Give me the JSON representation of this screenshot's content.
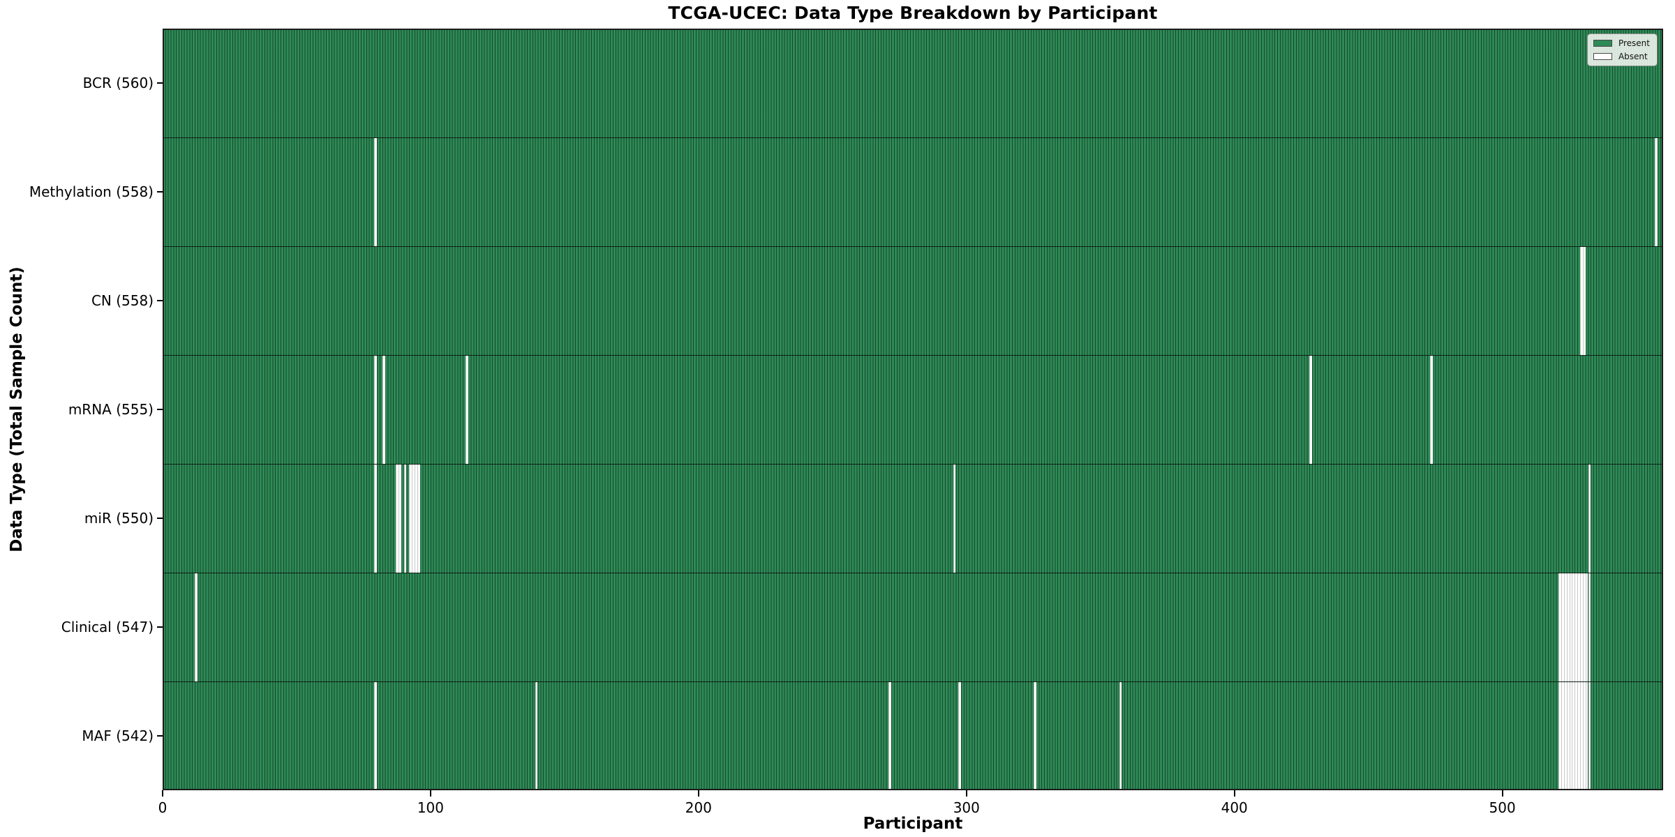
{
  "chart_data": {
    "type": "heatmap",
    "title": "TCGA-UCEC: Data Type Breakdown by Participant",
    "xlabel": "Participant",
    "ylabel": "Data Type (Total Sample Count)",
    "x_range": [
      0,
      560
    ],
    "x_ticks": [
      0,
      100,
      200,
      300,
      400,
      500
    ],
    "grid": false,
    "colors": {
      "present": "#2e8b57",
      "present_edge": "#1b5236",
      "absent": "#ffffff",
      "absent_edge": "#c4c4c4",
      "axis": "#000000",
      "legend_background": "#f5f5f2"
    },
    "legend": {
      "position": "upper right",
      "entries": [
        {
          "label": "Present",
          "color": "#2e8b57"
        },
        {
          "label": "Absent",
          "color": "#ffffff"
        }
      ]
    },
    "rows": [
      {
        "label": "BCR (560)",
        "data_type": "BCR",
        "present_count": 560,
        "absent_participants": []
      },
      {
        "label": "Methylation (558)",
        "data_type": "Methylation",
        "present_count": 558,
        "absent_participants": [
          79,
          557
        ]
      },
      {
        "label": "CN (558)",
        "data_type": "CN",
        "present_count": 558,
        "absent_participants": [
          529,
          530
        ]
      },
      {
        "label": "mRNA (555)",
        "data_type": "mRNA",
        "present_count": 555,
        "absent_participants": [
          79,
          82,
          113,
          428,
          473
        ]
      },
      {
        "label": "miR (550)",
        "data_type": "miR",
        "present_count": 550,
        "absent_participants": [
          79,
          87,
          88,
          90,
          92,
          93,
          94,
          95,
          295,
          532
        ]
      },
      {
        "label": "Clinical (547)",
        "data_type": "Clinical",
        "present_count": 547,
        "absent_participants": [
          12,
          521,
          522,
          523,
          524,
          525,
          526,
          527,
          528,
          529,
          530,
          531,
          532
        ]
      },
      {
        "label": "MAF (542)",
        "data_type": "MAF",
        "present_count": 542,
        "absent_participants": [
          79,
          139,
          271,
          297,
          325,
          357,
          521,
          522,
          523,
          524,
          525,
          526,
          527,
          528,
          529,
          530,
          531,
          532
        ]
      }
    ]
  }
}
